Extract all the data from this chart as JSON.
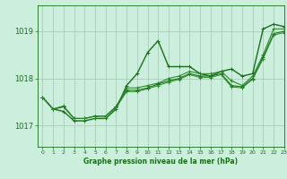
{
  "title": "Graphe pression niveau de la mer (hPa)",
  "background_color": "#cceedd",
  "grid_color": "#aaccbb",
  "line_color": "#1a6e1a",
  "xlim": [
    -0.5,
    23
  ],
  "ylim": [
    1016.55,
    1019.55
  ],
  "yticks": [
    1017,
    1018,
    1019
  ],
  "xticks": [
    0,
    1,
    2,
    3,
    4,
    5,
    6,
    7,
    8,
    9,
    10,
    11,
    12,
    13,
    14,
    15,
    16,
    17,
    18,
    19,
    20,
    21,
    22,
    23
  ],
  "series": [
    [
      1017.6,
      1017.35,
      1017.3,
      1017.1,
      1017.1,
      1017.15,
      1017.15,
      1017.35,
      1017.85,
      1018.1,
      1018.55,
      1018.8,
      1018.25,
      1018.25,
      1018.25,
      1018.1,
      1018.05,
      1018.15,
      1018.2,
      1018.05,
      1018.1,
      1019.05,
      1019.15,
      1019.1
    ],
    [
      1017.6,
      1017.35,
      1017.4,
      1017.15,
      1017.15,
      1017.2,
      1017.2,
      1017.4,
      1017.8,
      1017.8,
      1017.85,
      1017.9,
      1018.0,
      1018.05,
      1018.15,
      1018.1,
      1018.1,
      1018.15,
      1017.95,
      1017.85,
      1018.05,
      1018.5,
      1019.05,
      1019.05
    ],
    [
      1017.6,
      1017.35,
      1017.4,
      1017.15,
      1017.15,
      1017.2,
      1017.2,
      1017.4,
      1017.75,
      1017.75,
      1017.8,
      1017.88,
      1017.95,
      1018.0,
      1018.1,
      1018.05,
      1018.05,
      1018.1,
      1017.85,
      1017.82,
      1018.0,
      1018.45,
      1018.95,
      1019.0
    ],
    [
      1017.6,
      1017.35,
      1017.42,
      1017.15,
      1017.15,
      1017.2,
      1017.2,
      1017.38,
      1017.72,
      1017.72,
      1017.78,
      1017.85,
      1017.92,
      1017.98,
      1018.08,
      1018.02,
      1018.02,
      1018.08,
      1017.82,
      1017.8,
      1017.98,
      1018.42,
      1018.92,
      1018.97
    ]
  ]
}
